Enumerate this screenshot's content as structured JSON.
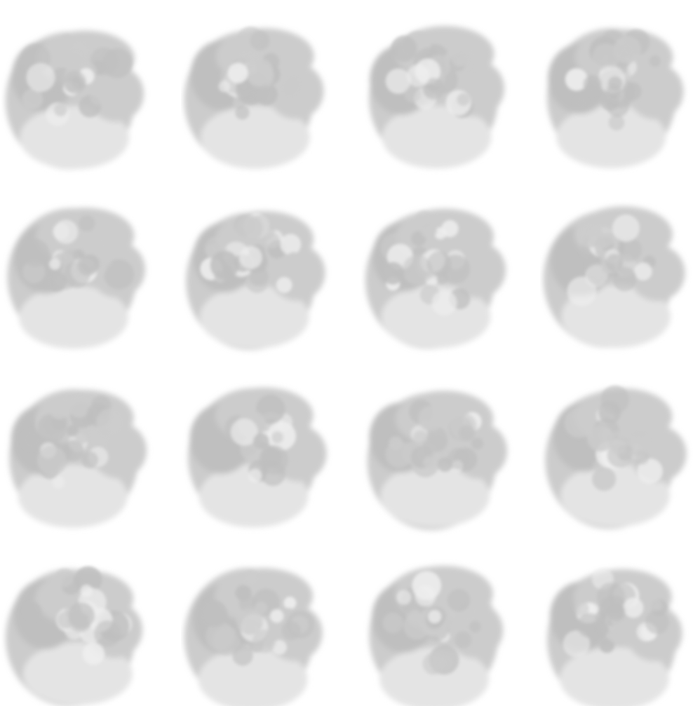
{
  "grid": {
    "rows": 4,
    "cols": 4
  },
  "palette": {
    "background": "#ffffff",
    "cloud_shadow": "#bfbfbf",
    "cloud_mid": "#cccccc",
    "cloud_light": "#e4e4e4",
    "cloud_highlight": "#efefef"
  },
  "frames": [
    {
      "variant": 0
    },
    {
      "variant": 1
    },
    {
      "variant": 2
    },
    {
      "variant": 3
    },
    {
      "variant": 4
    },
    {
      "variant": 5
    },
    {
      "variant": 6
    },
    {
      "variant": 7
    },
    {
      "variant": 8
    },
    {
      "variant": 9
    },
    {
      "variant": 10
    },
    {
      "variant": 11
    },
    {
      "variant": 12
    },
    {
      "variant": 13
    },
    {
      "variant": 14
    },
    {
      "variant": 15
    }
  ]
}
